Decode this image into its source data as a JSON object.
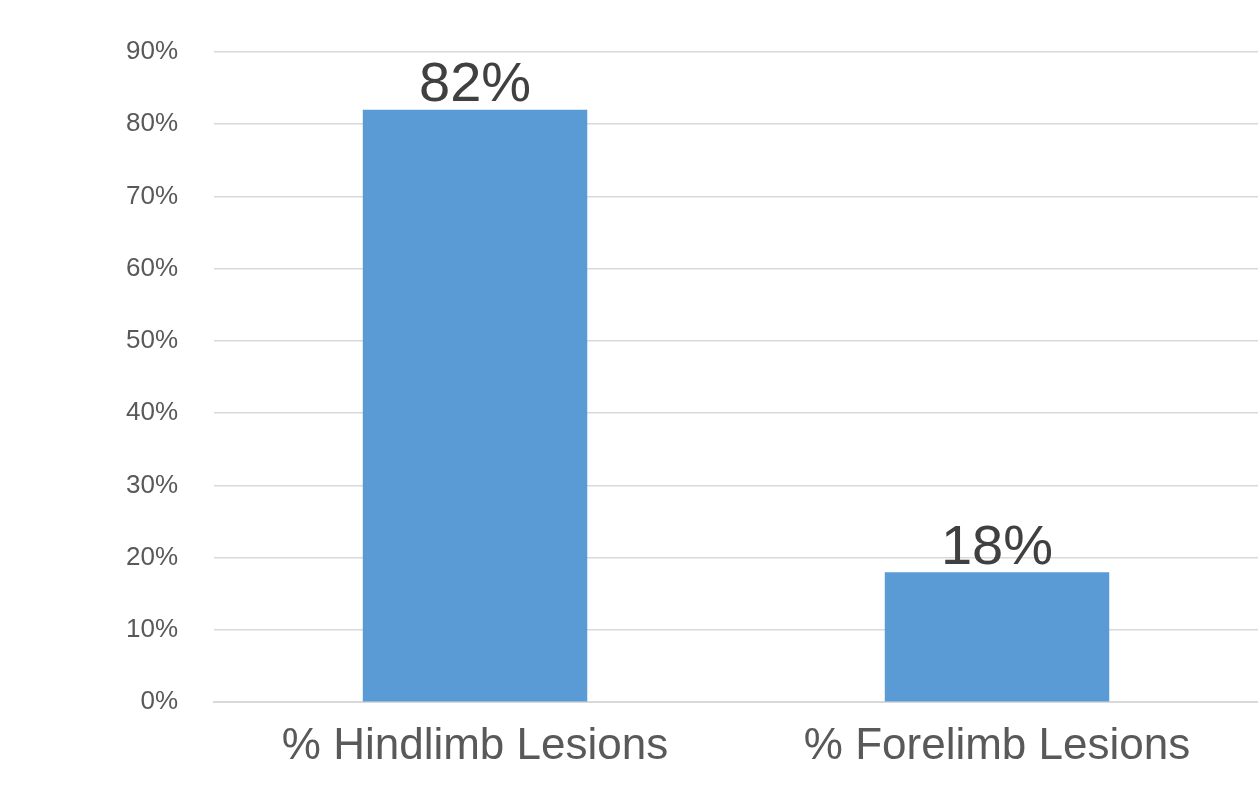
{
  "chart_data": {
    "type": "bar",
    "categories": [
      "% Hindlimb Lesions",
      "% Forelimb Lesions"
    ],
    "values": [
      82,
      18
    ],
    "color": "#5b9bd5",
    "value_labels": [
      "82%",
      "18%"
    ],
    "ylim": [
      0,
      90
    ],
    "yticks": [
      {
        "value": 0,
        "label": "0%"
      },
      {
        "value": 10,
        "label": "10%"
      },
      {
        "value": 20,
        "label": "20%"
      },
      {
        "value": 30,
        "label": "30%"
      },
      {
        "value": 40,
        "label": "40%"
      },
      {
        "value": 50,
        "label": "50%"
      },
      {
        "value": 60,
        "label": "60%"
      },
      {
        "value": 70,
        "label": "70%"
      },
      {
        "value": 80,
        "label": "80%"
      },
      {
        "value": 90,
        "label": "90%"
      }
    ],
    "grid": "y",
    "legend": false
  }
}
